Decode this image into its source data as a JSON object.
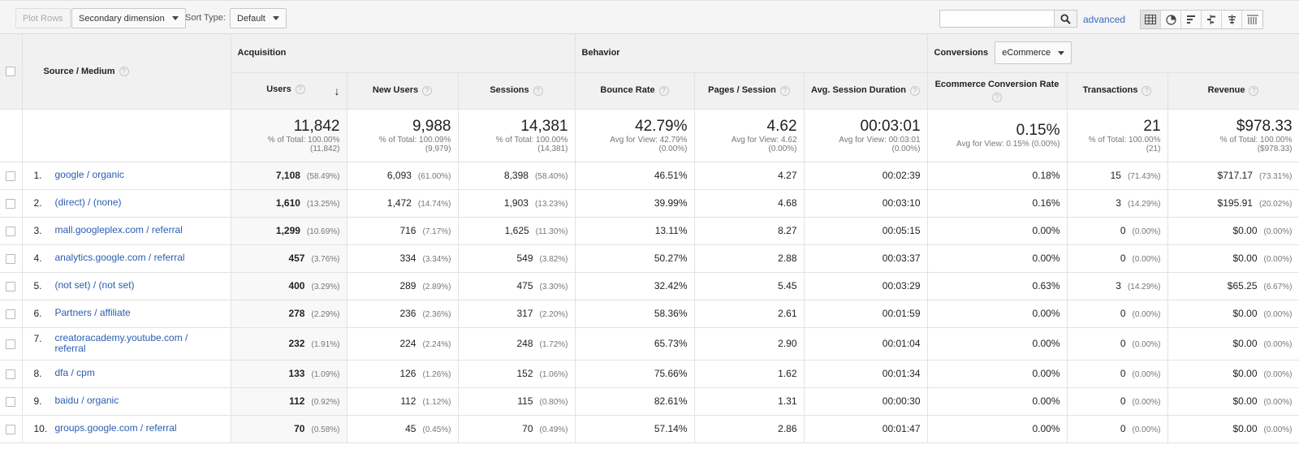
{
  "toolbar": {
    "plot_rows": "Plot Rows",
    "secondary_dimension": "Secondary dimension",
    "sort_type_label": "Sort Type:",
    "sort_type_value": "Default",
    "search_placeholder": "",
    "advanced": "advanced",
    "view_icons": [
      "table-view-icon",
      "pie-view-icon",
      "performance-view-icon",
      "comparison-view-icon",
      "term-cloud-view-icon",
      "pivot-view-icon"
    ]
  },
  "table": {
    "dimension_header": "Source / Medium",
    "group_acquisition": "Acquisition",
    "group_behavior": "Behavior",
    "group_conversions": "Conversions",
    "conversions_select": "eCommerce",
    "help_mark": "?",
    "sort_arrow": "↓",
    "columns": {
      "users": "Users",
      "new_users": "New Users",
      "sessions": "Sessions",
      "bounce_rate": "Bounce Rate",
      "pages_session": "Pages / Session",
      "avg_session_duration": "Avg. Session Duration",
      "ecommerce_conversion_rate": "Ecommerce Conversion Rate",
      "transactions": "Transactions",
      "revenue": "Revenue"
    },
    "totals": {
      "users": {
        "main": "11,842",
        "sub1": "% of Total: 100.00%",
        "sub2": "(11,842)"
      },
      "new_users": {
        "main": "9,988",
        "sub1": "% of Total: 100.09%",
        "sub2": "(9,979)"
      },
      "sessions": {
        "main": "14,381",
        "sub1": "% of Total: 100.00%",
        "sub2": "(14,381)"
      },
      "bounce_rate": {
        "main": "42.79%",
        "sub1": "Avg for View: 42.79%",
        "sub2": "(0.00%)"
      },
      "pages_session": {
        "main": "4.62",
        "sub1": "Avg for View: 4.62",
        "sub2": "(0.00%)"
      },
      "avg_session_duration": {
        "main": "00:03:01",
        "sub1": "Avg for View: 00:03:01",
        "sub2": "(0.00%)"
      },
      "ecommerce_conversion_rate": {
        "main": "0.15%",
        "sub1": "Avg for View: 0.15% (0.00%)",
        "sub2": ""
      },
      "transactions": {
        "main": "21",
        "sub1": "% of Total: 100.00%",
        "sub2": "(21)"
      },
      "revenue": {
        "main": "$978.33",
        "sub1": "% of Total: 100.00%",
        "sub2": "($978.33)"
      }
    },
    "rows": [
      {
        "num": "1.",
        "source": "google / organic",
        "users": "7,108",
        "users_pct": "(58.49%)",
        "new_users": "6,093",
        "new_users_pct": "(61.00%)",
        "sessions": "8,398",
        "sessions_pct": "(58.40%)",
        "bounce_rate": "46.51%",
        "pages_session": "4.27",
        "avg_duration": "00:02:39",
        "conv_rate": "0.18%",
        "transactions": "15",
        "transactions_pct": "(71.43%)",
        "revenue": "$717.17",
        "revenue_pct": "(73.31%)"
      },
      {
        "num": "2.",
        "source": "(direct) / (none)",
        "users": "1,610",
        "users_pct": "(13.25%)",
        "new_users": "1,472",
        "new_users_pct": "(14.74%)",
        "sessions": "1,903",
        "sessions_pct": "(13.23%)",
        "bounce_rate": "39.99%",
        "pages_session": "4.68",
        "avg_duration": "00:03:10",
        "conv_rate": "0.16%",
        "transactions": "3",
        "transactions_pct": "(14.29%)",
        "revenue": "$195.91",
        "revenue_pct": "(20.02%)"
      },
      {
        "num": "3.",
        "source": "mall.googleplex.com / referral",
        "users": "1,299",
        "users_pct": "(10.69%)",
        "new_users": "716",
        "new_users_pct": "(7.17%)",
        "sessions": "1,625",
        "sessions_pct": "(11.30%)",
        "bounce_rate": "13.11%",
        "pages_session": "8.27",
        "avg_duration": "00:05:15",
        "conv_rate": "0.00%",
        "transactions": "0",
        "transactions_pct": "(0.00%)",
        "revenue": "$0.00",
        "revenue_pct": "(0.00%)"
      },
      {
        "num": "4.",
        "source": "analytics.google.com / referral",
        "users": "457",
        "users_pct": "(3.76%)",
        "new_users": "334",
        "new_users_pct": "(3.34%)",
        "sessions": "549",
        "sessions_pct": "(3.82%)",
        "bounce_rate": "50.27%",
        "pages_session": "2.88",
        "avg_duration": "00:03:37",
        "conv_rate": "0.00%",
        "transactions": "0",
        "transactions_pct": "(0.00%)",
        "revenue": "$0.00",
        "revenue_pct": "(0.00%)"
      },
      {
        "num": "5.",
        "source": "(not set) / (not set)",
        "users": "400",
        "users_pct": "(3.29%)",
        "new_users": "289",
        "new_users_pct": "(2.89%)",
        "sessions": "475",
        "sessions_pct": "(3.30%)",
        "bounce_rate": "32.42%",
        "pages_session": "5.45",
        "avg_duration": "00:03:29",
        "conv_rate": "0.63%",
        "transactions": "3",
        "transactions_pct": "(14.29%)",
        "revenue": "$65.25",
        "revenue_pct": "(6.67%)"
      },
      {
        "num": "6.",
        "source": "Partners / affiliate",
        "users": "278",
        "users_pct": "(2.29%)",
        "new_users": "236",
        "new_users_pct": "(2.36%)",
        "sessions": "317",
        "sessions_pct": "(2.20%)",
        "bounce_rate": "58.36%",
        "pages_session": "2.61",
        "avg_duration": "00:01:59",
        "conv_rate": "0.00%",
        "transactions": "0",
        "transactions_pct": "(0.00%)",
        "revenue": "$0.00",
        "revenue_pct": "(0.00%)"
      },
      {
        "num": "7.",
        "source": "creatoracademy.youtube.com / referral",
        "users": "232",
        "users_pct": "(1.91%)",
        "new_users": "224",
        "new_users_pct": "(2.24%)",
        "sessions": "248",
        "sessions_pct": "(1.72%)",
        "bounce_rate": "65.73%",
        "pages_session": "2.90",
        "avg_duration": "00:01:04",
        "conv_rate": "0.00%",
        "transactions": "0",
        "transactions_pct": "(0.00%)",
        "revenue": "$0.00",
        "revenue_pct": "(0.00%)"
      },
      {
        "num": "8.",
        "source": "dfa / cpm",
        "users": "133",
        "users_pct": "(1.09%)",
        "new_users": "126",
        "new_users_pct": "(1.26%)",
        "sessions": "152",
        "sessions_pct": "(1.06%)",
        "bounce_rate": "75.66%",
        "pages_session": "1.62",
        "avg_duration": "00:01:34",
        "conv_rate": "0.00%",
        "transactions": "0",
        "transactions_pct": "(0.00%)",
        "revenue": "$0.00",
        "revenue_pct": "(0.00%)"
      },
      {
        "num": "9.",
        "source": "baidu / organic",
        "users": "112",
        "users_pct": "(0.92%)",
        "new_users": "112",
        "new_users_pct": "(1.12%)",
        "sessions": "115",
        "sessions_pct": "(0.80%)",
        "bounce_rate": "82.61%",
        "pages_session": "1.31",
        "avg_duration": "00:00:30",
        "conv_rate": "0.00%",
        "transactions": "0",
        "transactions_pct": "(0.00%)",
        "revenue": "$0.00",
        "revenue_pct": "(0.00%)"
      },
      {
        "num": "10.",
        "source": "groups.google.com / referral",
        "users": "70",
        "users_pct": "(0.58%)",
        "new_users": "45",
        "new_users_pct": "(0.45%)",
        "sessions": "70",
        "sessions_pct": "(0.49%)",
        "bounce_rate": "57.14%",
        "pages_session": "2.86",
        "avg_duration": "00:01:47",
        "conv_rate": "0.00%",
        "transactions": "0",
        "transactions_pct": "(0.00%)",
        "revenue": "$0.00",
        "revenue_pct": "(0.00%)"
      }
    ]
  }
}
